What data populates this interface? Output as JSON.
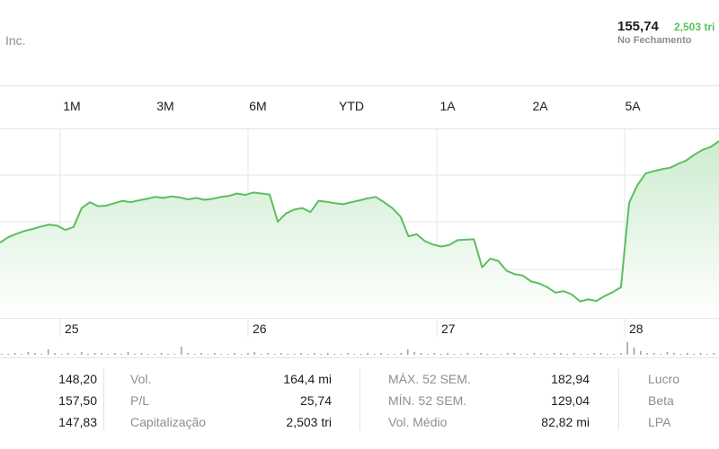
{
  "header": {
    "company": "Inc.",
    "price": "155,74",
    "change": "2,503 tri",
    "close_label": "No Fechamento"
  },
  "ranges": [
    "1M",
    "3M",
    "6M",
    "YTD",
    "1A",
    "2A",
    "5A"
  ],
  "chart_data": {
    "type": "area",
    "x_labels": [
      "25",
      "26",
      "27",
      "28"
    ],
    "values": [
      133.5,
      134.6,
      135.3,
      135.9,
      136.3,
      136.8,
      137.2,
      137.0,
      136.1,
      136.7,
      140.6,
      141.8,
      141.0,
      141.1,
      141.6,
      142.1,
      141.8,
      142.2,
      142.5,
      142.9,
      142.7,
      143.0,
      142.8,
      142.4,
      142.7,
      142.3,
      142.5,
      142.9,
      143.1,
      143.6,
      143.3,
      143.8,
      143.6,
      143.4,
      137.8,
      139.5,
      140.3,
      140.6,
      139.8,
      142.1,
      141.9,
      141.6,
      141.4,
      141.8,
      142.2,
      142.6,
      142.9,
      141.8,
      140.6,
      138.9,
      134.8,
      135.2,
      133.8,
      133.1,
      132.7,
      133.0,
      134.0,
      134.1,
      134.2,
      128.4,
      130.2,
      129.7,
      127.7,
      127.0,
      126.7,
      125.5,
      125.1,
      124.3,
      123.2,
      123.5,
      122.8,
      121.4,
      121.8,
      121.5,
      122.5,
      123.3,
      124.3,
      141.7,
      145.3,
      147.7,
      148.2,
      148.6,
      148.9,
      149.7,
      150.4,
      151.6,
      152.6,
      153.2,
      154.4
    ],
    "colors": {
      "line": "#5bbf5e",
      "fill_top": "#cdeccf",
      "fill_bottom": "#ffffff",
      "grid": "#e5e5ea"
    }
  },
  "volume_bars": [
    1,
    1,
    2,
    1,
    3,
    2,
    1,
    6,
    2,
    1,
    2,
    1,
    3,
    1,
    2,
    2,
    1,
    2,
    1,
    3,
    1,
    2,
    1,
    1,
    2,
    1,
    1,
    9,
    2,
    1,
    2,
    1,
    2,
    1,
    1,
    2,
    1,
    2,
    3,
    1,
    2,
    1,
    2,
    1,
    1,
    2,
    1,
    2,
    1,
    2,
    1,
    1,
    2,
    1,
    1,
    2,
    1,
    2,
    1,
    1,
    2,
    6,
    3,
    2,
    1,
    2,
    1,
    2,
    1,
    1,
    2,
    1,
    2,
    1,
    1,
    1,
    2,
    2,
    1,
    1,
    2,
    1,
    1,
    2,
    2,
    1,
    2,
    1,
    1,
    2,
    2,
    1,
    1,
    2,
    14,
    8,
    4,
    2,
    2,
    1,
    3,
    2,
    1,
    2,
    1,
    2,
    1,
    2
  ],
  "stats": {
    "col1": [
      "148,20",
      "157,50",
      "147,83"
    ],
    "col2": [
      {
        "label": "Vol.",
        "value": "164,4 mi"
      },
      {
        "label": "P/L",
        "value": "25,74"
      },
      {
        "label": "Capitalização",
        "value": "2,503 tri"
      }
    ],
    "col3": [
      {
        "label": "MÁX. 52 SEM.",
        "value": "182,94"
      },
      {
        "label": "MÍN. 52 SEM.",
        "value": "129,04"
      },
      {
        "label": "Vol. Médio",
        "value": "82,82 mi"
      }
    ],
    "col4": [
      "Lucro",
      "Beta",
      "LPA"
    ]
  }
}
